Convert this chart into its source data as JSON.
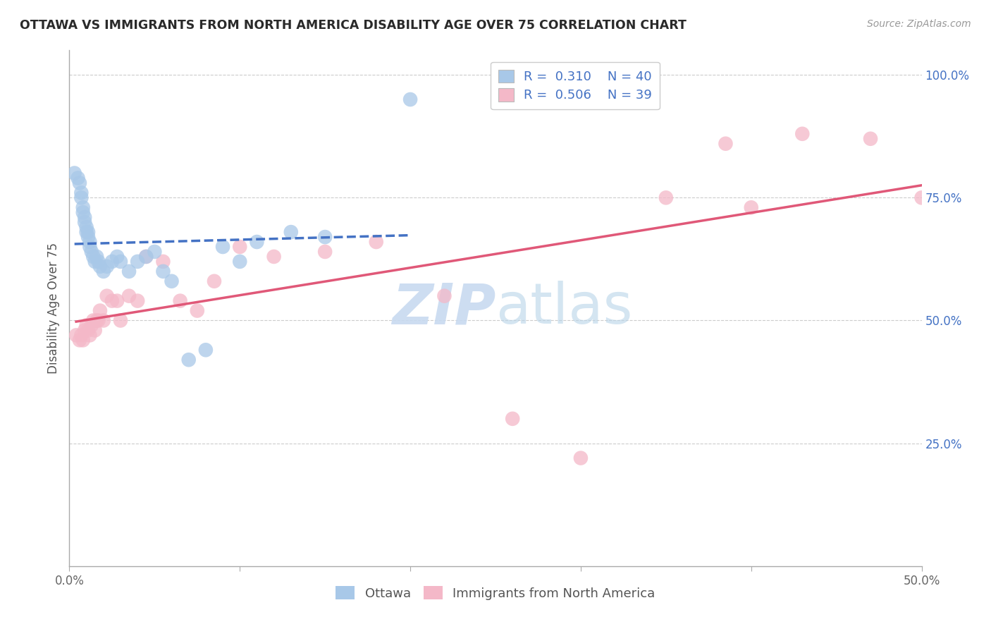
{
  "title": "OTTAWA VS IMMIGRANTS FROM NORTH AMERICA DISABILITY AGE OVER 75 CORRELATION CHART",
  "source": "Source: ZipAtlas.com",
  "ylabel": "Disability Age Over 75",
  "xmin": 0.0,
  "xmax": 0.5,
  "ymin": 0.0,
  "ymax": 1.05,
  "x_tick_vals": [
    0.0,
    0.1,
    0.2,
    0.3,
    0.4,
    0.5
  ],
  "x_tick_labels": [
    "0.0%",
    "",
    "",
    "",
    "",
    "50.0%"
  ],
  "y_tick_positions_right": [
    0.25,
    0.5,
    0.75,
    1.0
  ],
  "y_tick_labels_right": [
    "25.0%",
    "50.0%",
    "75.0%",
    "100.0%"
  ],
  "ottawa_R": 0.31,
  "ottawa_N": 40,
  "immigrants_R": 0.506,
  "immigrants_N": 39,
  "ottawa_color": "#a8c8e8",
  "immigrants_color": "#f4b8c8",
  "ottawa_line_color": "#4472c4",
  "immigrants_line_color": "#e05878",
  "background_color": "#ffffff",
  "grid_color": "#cccccc",
  "legend_label_ottawa": "Ottawa",
  "legend_label_immigrants": "Immigrants from North America",
  "watermark_color": "#c8daf0",
  "ottawa_x": [
    0.003,
    0.005,
    0.006,
    0.007,
    0.007,
    0.008,
    0.008,
    0.009,
    0.009,
    0.01,
    0.01,
    0.011,
    0.011,
    0.012,
    0.012,
    0.013,
    0.014,
    0.015,
    0.016,
    0.017,
    0.018,
    0.02,
    0.022,
    0.025,
    0.028,
    0.03,
    0.035,
    0.04,
    0.045,
    0.05,
    0.06,
    0.07,
    0.08,
    0.09,
    0.1,
    0.11,
    0.13,
    0.15,
    0.2,
    0.055
  ],
  "ottawa_y": [
    0.8,
    0.79,
    0.78,
    0.76,
    0.75,
    0.73,
    0.72,
    0.71,
    0.7,
    0.69,
    0.68,
    0.68,
    0.67,
    0.66,
    0.65,
    0.64,
    0.63,
    0.62,
    0.63,
    0.62,
    0.61,
    0.6,
    0.61,
    0.62,
    0.63,
    0.62,
    0.6,
    0.62,
    0.63,
    0.64,
    0.58,
    0.42,
    0.44,
    0.65,
    0.62,
    0.66,
    0.68,
    0.67,
    0.95,
    0.6
  ],
  "immigrants_x": [
    0.004,
    0.006,
    0.007,
    0.008,
    0.009,
    0.01,
    0.011,
    0.012,
    0.013,
    0.014,
    0.015,
    0.016,
    0.017,
    0.018,
    0.02,
    0.022,
    0.025,
    0.028,
    0.03,
    0.035,
    0.04,
    0.045,
    0.055,
    0.065,
    0.075,
    0.085,
    0.1,
    0.12,
    0.15,
    0.18,
    0.22,
    0.26,
    0.3,
    0.35,
    0.385,
    0.4,
    0.43,
    0.47,
    0.5
  ],
  "immigrants_y": [
    0.47,
    0.46,
    0.47,
    0.46,
    0.48,
    0.49,
    0.48,
    0.47,
    0.49,
    0.5,
    0.48,
    0.5,
    0.5,
    0.52,
    0.5,
    0.55,
    0.54,
    0.54,
    0.5,
    0.55,
    0.54,
    0.63,
    0.62,
    0.54,
    0.52,
    0.58,
    0.65,
    0.63,
    0.64,
    0.66,
    0.55,
    0.3,
    0.22,
    0.75,
    0.86,
    0.73,
    0.88,
    0.87,
    0.75
  ]
}
